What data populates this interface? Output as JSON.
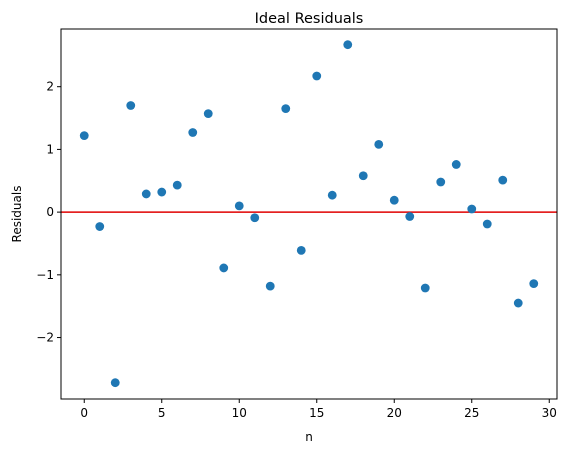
{
  "chart_data": {
    "type": "scatter",
    "title": "Ideal Residuals",
    "xlabel": "n",
    "ylabel": "Residuals",
    "xlim": [
      -1.5,
      30.5
    ],
    "ylim": [
      -2.98,
      2.92
    ],
    "x_ticks": [
      0,
      5,
      10,
      15,
      20,
      25,
      30
    ],
    "y_ticks": [
      -2,
      -1,
      0,
      1,
      2
    ],
    "y_tick_labels": [
      "−2",
      "−1",
      "0",
      "1",
      "2"
    ],
    "grid": false,
    "reference_line": {
      "y": 0,
      "color": "#e00000"
    },
    "marker_color": "#1f77b4",
    "series": [
      {
        "x": [
          0,
          1,
          2,
          3,
          4,
          5,
          6,
          7,
          8,
          9,
          10,
          11,
          12,
          13,
          14,
          15,
          16,
          17,
          18,
          19,
          20,
          21,
          22,
          23,
          24,
          25,
          26,
          27,
          28,
          29
        ],
        "y": [
          1.22,
          -0.23,
          -2.72,
          1.7,
          0.29,
          0.32,
          0.43,
          1.27,
          1.57,
          -0.89,
          0.1,
          -0.09,
          -1.18,
          1.65,
          -0.61,
          2.17,
          0.27,
          2.67,
          0.58,
          1.08,
          0.19,
          -0.07,
          -1.21,
          0.48,
          0.76,
          0.05,
          -0.19,
          0.51,
          -1.45,
          -1.14
        ]
      }
    ]
  }
}
